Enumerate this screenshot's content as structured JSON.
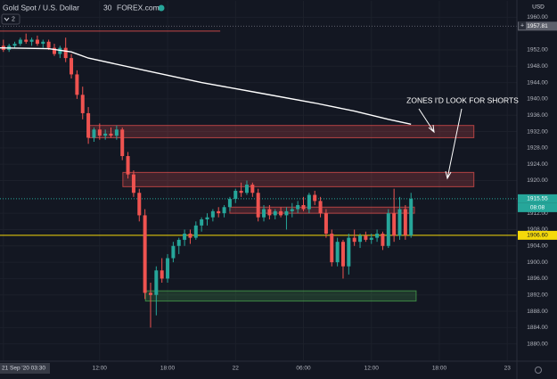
{
  "header": {
    "symbol": "Gold Spot / U.S. Dollar",
    "interval": "30",
    "source": "FOREX.com",
    "indicator_count": "2"
  },
  "chart_data": {
    "type": "candlestick",
    "currency": "USD",
    "background": "#131722",
    "up_color": "#26a69a",
    "down_color": "#ef5350",
    "grid": true,
    "xlim": [
      -0.6,
      90.7
    ],
    "ylim": [
      1876,
      1964
    ],
    "yticks": [
      {
        "value": 1880,
        "label": "1880.00"
      },
      {
        "value": 1884,
        "label": "1884.00"
      },
      {
        "value": 1888,
        "label": "1888.00"
      },
      {
        "value": 1892,
        "label": "1892.00"
      },
      {
        "value": 1896,
        "label": "1896.00"
      },
      {
        "value": 1900,
        "label": "1900.00"
      },
      {
        "value": 1904,
        "label": "1904.00"
      },
      {
        "value": 1908,
        "label": "1908.00"
      },
      {
        "value": 1912,
        "label": "1912.00"
      },
      {
        "value": 1920,
        "label": "1920.00"
      },
      {
        "value": 1924,
        "label": "1924.00"
      },
      {
        "value": 1928,
        "label": "1928.00"
      },
      {
        "value": 1932,
        "label": "1932.00"
      },
      {
        "value": 1936,
        "label": "1936.00"
      },
      {
        "value": 1940,
        "label": "1940.00"
      },
      {
        "value": 1944,
        "label": "1944.00"
      },
      {
        "value": 1948,
        "label": "1948.00"
      },
      {
        "value": 1952,
        "label": "1952.00"
      },
      {
        "value": 1960,
        "label": "1960.00"
      }
    ],
    "xticks": [
      {
        "value": 0,
        "label": "21 Sep '20  03:30"
      },
      {
        "value": 17,
        "label": "12:00"
      },
      {
        "value": 29,
        "label": "18:00"
      },
      {
        "value": 41,
        "label": "22"
      },
      {
        "value": 53,
        "label": "06:00"
      },
      {
        "value": 65,
        "label": "12:00"
      },
      {
        "value": 77,
        "label": "18:00"
      },
      {
        "value": 89,
        "label": "23"
      }
    ],
    "open": [
      1953,
      1952,
      1953,
      1953.5,
      1954.5,
      1954,
      1954.5,
      1953.5,
      1954,
      1952.5,
      1951,
      1952.5,
      1950,
      1946,
      1941,
      1936.5,
      1930.5,
      1932.5,
      1931,
      1931.5,
      1931,
      1932.5,
      1926,
      1921.5,
      1917,
      1911.5,
      1892.5,
      1892,
      1898,
      1896,
      1901,
      1904,
      1905.5,
      1907,
      1906,
      1909,
      1910.5,
      1911,
      1912.5,
      1912,
      1913.5,
      1915.5,
      1917.5,
      1917,
      1919,
      1917,
      1911,
      1913,
      1911.5,
      1912.5,
      1911.5,
      1912.5,
      1913,
      1914,
      1913,
      1916.5,
      1915,
      1912,
      1907,
      1900,
      1905,
      1899,
      1906,
      1905,
      1906.5,
      1905.5,
      1906,
      1907,
      1904,
      1912,
      1906.5,
      1913,
      1906.6
    ],
    "high": [
      1954.5,
      1953.5,
      1954,
      1955,
      1956,
      1955,
      1955.5,
      1954.5,
      1954.5,
      1953.5,
      1953,
      1955,
      1951,
      1947,
      1943,
      1938,
      1933,
      1934,
      1932.5,
      1933,
      1933.5,
      1933,
      1927,
      1922.5,
      1918,
      1913,
      1895,
      1899,
      1901,
      1902,
      1905,
      1906,
      1908,
      1908,
      1910,
      1911,
      1912,
      1913,
      1913.5,
      1914,
      1916,
      1918,
      1919.5,
      1920,
      1919.5,
      1918,
      1914,
      1914,
      1913,
      1913.5,
      1913.5,
      1914.5,
      1915,
      1916,
      1917,
      1917.5,
      1916,
      1913,
      1908,
      1906,
      1905.5,
      1907,
      1908,
      1907,
      1907.5,
      1907,
      1908,
      1907.5,
      1913,
      1918,
      1916,
      1914,
      1917
    ],
    "low": [
      1951.5,
      1951.5,
      1952.5,
      1953,
      1953.5,
      1953,
      1953,
      1952.5,
      1952,
      1950.5,
      1950,
      1949,
      1945,
      1940,
      1935,
      1929,
      1929.5,
      1930,
      1930,
      1930.5,
      1930,
      1925,
      1920.5,
      1916,
      1910,
      1891,
      1884,
      1887,
      1895,
      1895,
      1900,
      1902,
      1904,
      1904.5,
      1905.5,
      1907.5,
      1909,
      1910,
      1911,
      1911,
      1912.5,
      1914.5,
      1916,
      1916.5,
      1916,
      1910,
      1910,
      1910.5,
      1910.5,
      1911,
      1908,
      1911,
      1912,
      1912.5,
      1912,
      1914,
      1911,
      1906,
      1899,
      1899,
      1896,
      1897,
      1904,
      1903.5,
      1905,
      1904.5,
      1905,
      1903,
      1903.5,
      1905,
      1905.5,
      1905.5,
      1906
    ],
    "close": [
      1952,
      1953,
      1953.5,
      1954.5,
      1954,
      1954.5,
      1953.5,
      1954,
      1952.5,
      1951,
      1952.5,
      1950,
      1946,
      1941,
      1936.5,
      1930.5,
      1932.5,
      1931,
      1931.5,
      1931,
      1932.5,
      1926,
      1921.5,
      1917,
      1911.5,
      1892.5,
      1892,
      1898,
      1896,
      1901,
      1904,
      1905.5,
      1907,
      1906,
      1909,
      1910.5,
      1911,
      1912.5,
      1912,
      1913.5,
      1915.5,
      1917.5,
      1917,
      1919,
      1917,
      1911,
      1913,
      1911.5,
      1912.5,
      1911.5,
      1912.5,
      1913,
      1914,
      1913,
      1916.5,
      1915,
      1912,
      1907,
      1900,
      1905,
      1899,
      1906,
      1905,
      1906.5,
      1905.5,
      1906,
      1907,
      1904,
      1912,
      1906.5,
      1913,
      1906.6,
      1915.55
    ],
    "moving_average": {
      "color": "#ffffff",
      "x": [
        -0.6,
        8,
        12,
        15,
        25,
        35,
        45,
        55,
        62,
        68,
        72
      ],
      "values": [
        1952.5,
        1952.3,
        1951.5,
        1950,
        1947,
        1944,
        1941.5,
        1939,
        1937,
        1935,
        1933.8
      ]
    },
    "zones": [
      {
        "color": "#ef5350",
        "x": [
          -0.6,
          38.3
        ],
        "y": [
          1956.6,
          1956.6
        ]
      },
      {
        "color": "#ef5350",
        "x": [
          15.1,
          83.1
        ],
        "y": [
          1930.5,
          1933.5
        ]
      },
      {
        "color": "#ef5350",
        "x": [
          21.1,
          83.1
        ],
        "y": [
          1918.5,
          1922
        ]
      },
      {
        "color": "#ef5350",
        "x": [
          40,
          72.6
        ],
        "y": [
          1912,
          1913.5
        ]
      },
      {
        "color": "#4caf50",
        "x": [
          25.1,
          72.9
        ],
        "y": [
          1890.5,
          1893
        ]
      }
    ],
    "price_lines": [
      {
        "value": 1957.81,
        "label": "1957.81",
        "color": "#5d606b",
        "style": "dotted"
      },
      {
        "value": 1915.55,
        "label": "1915.55",
        "color": "#26a69a",
        "style": "dotted"
      },
      {
        "value": 1906.6,
        "label": "1906.60",
        "color": "#f5d90a",
        "style": "solid"
      }
    ],
    "countdown": "08:08",
    "annotation": "ZONES I'D LOOK FOR SHORTS"
  }
}
